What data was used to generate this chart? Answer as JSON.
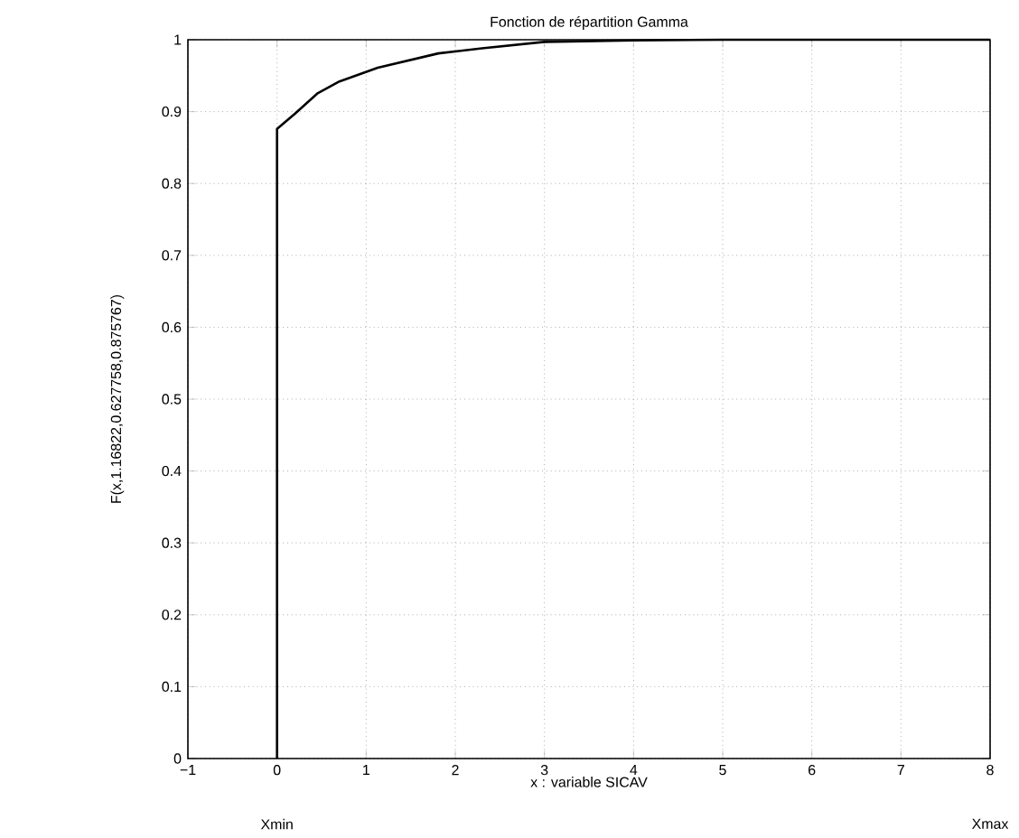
{
  "chart_data": {
    "type": "line",
    "title": "Fonction de répartition Gamma",
    "xlabel": "x : variable SICAV",
    "ylabel": "F(x,1.16822,0.627758,0.875767)",
    "x": [
      0,
      0,
      0.2,
      0.45,
      0.7,
      1.13,
      1.81,
      2.3,
      3,
      4,
      5,
      6,
      7,
      8
    ],
    "series": [
      {
        "color": "#000000",
        "values": [
          0,
          0.876,
          0.897,
          0.925,
          0.942,
          0.961,
          0.981,
          0.988,
          0.997,
          0.999,
          1,
          1,
          1,
          1
        ]
      }
    ],
    "xlim": [
      -1,
      8
    ],
    "ylim": [
      0,
      1
    ],
    "xticks": [
      {
        "value": -1,
        "label": "−1"
      },
      0,
      1,
      2,
      3,
      4,
      5,
      6,
      7,
      8
    ],
    "yticks": [
      0,
      0.1,
      0.2,
      0.3,
      0.4,
      0.5,
      0.6,
      0.7,
      0.8,
      0.9,
      1
    ],
    "grid": true,
    "marker": "none",
    "line_style": "solid",
    "annotations": [
      "Xmin",
      "Xmax"
    ]
  }
}
